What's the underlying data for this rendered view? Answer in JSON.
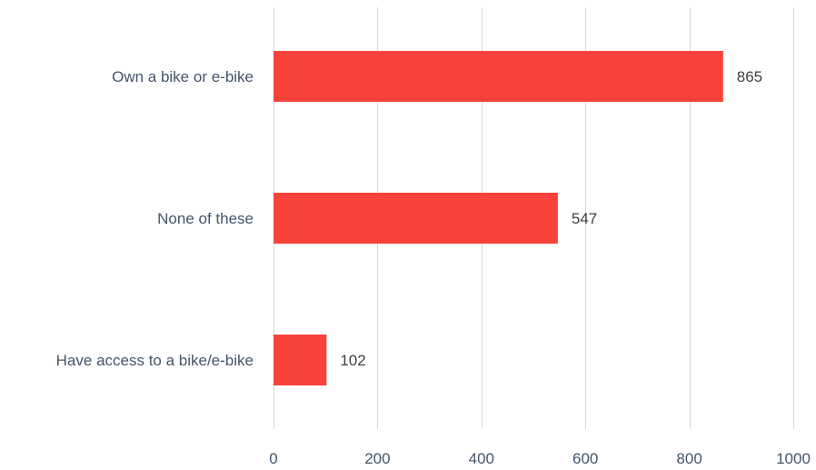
{
  "chart_data": {
    "type": "bar",
    "orientation": "horizontal",
    "categories": [
      "Own a bike or e-bike",
      "None of these",
      "Have access to a bike/e-bike"
    ],
    "values": [
      865,
      547,
      102
    ],
    "xlim": [
      0,
      1000
    ],
    "x_ticks": [
      0,
      200,
      400,
      600,
      800,
      1000
    ],
    "grid": true,
    "legend": "none",
    "bar_color": "#f9423a"
  }
}
